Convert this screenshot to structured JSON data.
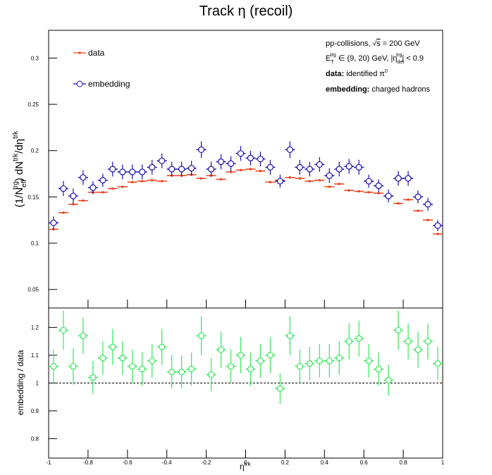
{
  "chart_data": [
    {
      "type": "errorbar",
      "title": "Track η (recoil)",
      "ylabel": [
        "(1/N",
        "eff",
        "trg",
        ") dN",
        "trk",
        "/dη",
        "trk"
      ],
      "x": [
        -0.975,
        -0.925,
        -0.875,
        -0.825,
        -0.775,
        -0.725,
        -0.675,
        -0.625,
        -0.575,
        -0.525,
        -0.475,
        -0.425,
        -0.375,
        -0.325,
        -0.275,
        -0.225,
        -0.175,
        -0.125,
        -0.075,
        -0.025,
        0.025,
        0.075,
        0.125,
        0.175,
        0.225,
        0.275,
        0.325,
        0.375,
        0.425,
        0.475,
        0.525,
        0.575,
        0.625,
        0.675,
        0.725,
        0.775,
        0.825,
        0.875,
        0.925,
        0.975
      ],
      "xlim": [
        -1,
        1
      ],
      "ylim": [
        0.03,
        0.33
      ],
      "yticks": [
        0.05,
        {
          "value": 0.1,
          "label": "0.1"
        },
        0.15,
        {
          "value": 0.2,
          "label": "0.2"
        },
        0.25,
        {
          "value": 0.3,
          "label": "0.3"
        }
      ],
      "series": [
        {
          "name": "data",
          "color": "#e8401c",
          "marker": "square",
          "values": [
            0.115,
            0.133,
            0.142,
            0.146,
            0.155,
            0.155,
            0.159,
            0.161,
            0.166,
            0.167,
            0.168,
            0.167,
            0.173,
            0.173,
            0.174,
            0.17,
            0.173,
            0.169,
            0.177,
            0.179,
            0.18,
            0.178,
            0.166,
            0.168,
            0.171,
            0.17,
            0.167,
            0.168,
            0.161,
            0.164,
            0.157,
            0.156,
            0.155,
            0.154,
            0.151,
            0.143,
            0.147,
            0.135,
            0.125,
            0.11
          ]
        },
        {
          "name": "embedding",
          "color": "#1a0fb0",
          "marker": "circle",
          "values": [
            0.122,
            0.159,
            0.151,
            0.171,
            0.16,
            0.168,
            0.18,
            0.177,
            0.177,
            0.177,
            0.182,
            0.189,
            0.18,
            0.18,
            0.181,
            0.201,
            0.18,
            0.188,
            0.186,
            0.197,
            0.192,
            0.191,
            0.182,
            0.167,
            0.201,
            0.182,
            0.18,
            0.185,
            0.173,
            0.18,
            0.183,
            0.182,
            0.167,
            0.162,
            0.151,
            0.17,
            0.17,
            0.15,
            0.142,
            0.119
          ],
          "errors": [
            0.007,
            0.008,
            0.008,
            0.008,
            0.007,
            0.007,
            0.008,
            0.008,
            0.008,
            0.008,
            0.008,
            0.008,
            0.008,
            0.008,
            0.008,
            0.009,
            0.008,
            0.008,
            0.008,
            0.008,
            0.008,
            0.008,
            0.008,
            0.007,
            0.009,
            0.008,
            0.008,
            0.008,
            0.008,
            0.008,
            0.008,
            0.008,
            0.007,
            0.007,
            0.007,
            0.008,
            0.008,
            0.007,
            0.007,
            0.006
          ]
        }
      ],
      "annotations": {
        "energy": [
          "pp-collisions, ",
          "√",
          "s",
          " = 200 GeV"
        ],
        "cuts": [
          "E",
          "T",
          "trg",
          " ∈ (9, 20) GeV, |η",
          "det",
          "trg",
          "| < 0.9"
        ],
        "data": [
          "data:",
          " identified π",
          "0"
        ],
        "embedding": [
          "embedding:",
          " charged hadrons"
        ]
      }
    },
    {
      "type": "errorbar",
      "ylabel": "embedding / data",
      "xlabel": [
        "η",
        "trk"
      ],
      "x": [
        -0.975,
        -0.925,
        -0.875,
        -0.825,
        -0.775,
        -0.725,
        -0.675,
        -0.625,
        -0.575,
        -0.525,
        -0.475,
        -0.425,
        -0.375,
        -0.325,
        -0.275,
        -0.225,
        -0.175,
        -0.125,
        -0.075,
        -0.025,
        0.025,
        0.075,
        0.125,
        0.175,
        0.225,
        0.275,
        0.325,
        0.375,
        0.425,
        0.475,
        0.525,
        0.575,
        0.625,
        0.675,
        0.725,
        0.775,
        0.825,
        0.875,
        0.925,
        0.975
      ],
      "xlim": [
        -1,
        1
      ],
      "xticks": [
        -1,
        -0.8,
        -0.6,
        -0.4,
        -0.2,
        0,
        0.2,
        0.4,
        0.6,
        0.8,
        1
      ],
      "ylim": [
        0.73,
        1.27
      ],
      "yticks": [
        0.8,
        0.9,
        1,
        1.1,
        1.2
      ],
      "ref_line": 1,
      "series": [
        {
          "color": "#33e85a",
          "marker": "circle",
          "values": [
            1.06,
            1.19,
            1.06,
            1.17,
            1.02,
            1.09,
            1.13,
            1.09,
            1.06,
            1.05,
            1.08,
            1.13,
            1.04,
            1.04,
            1.05,
            1.17,
            1.03,
            1.12,
            1.06,
            1.1,
            1.05,
            1.08,
            1.1,
            0.98,
            1.17,
            1.06,
            1.07,
            1.08,
            1.08,
            1.09,
            1.15,
            1.16,
            1.08,
            1.05,
            1.01,
            1.19,
            1.15,
            1.12,
            1.15,
            1.07
          ],
          "errors": [
            0.06,
            0.07,
            0.065,
            0.065,
            0.06,
            0.06,
            0.065,
            0.06,
            0.06,
            0.06,
            0.06,
            0.065,
            0.06,
            0.06,
            0.06,
            0.07,
            0.06,
            0.065,
            0.06,
            0.065,
            0.06,
            0.06,
            0.065,
            0.055,
            0.07,
            0.06,
            0.06,
            0.06,
            0.06,
            0.06,
            0.065,
            0.065,
            0.06,
            0.06,
            0.055,
            0.07,
            0.065,
            0.065,
            0.065,
            0.06
          ]
        }
      ]
    }
  ]
}
